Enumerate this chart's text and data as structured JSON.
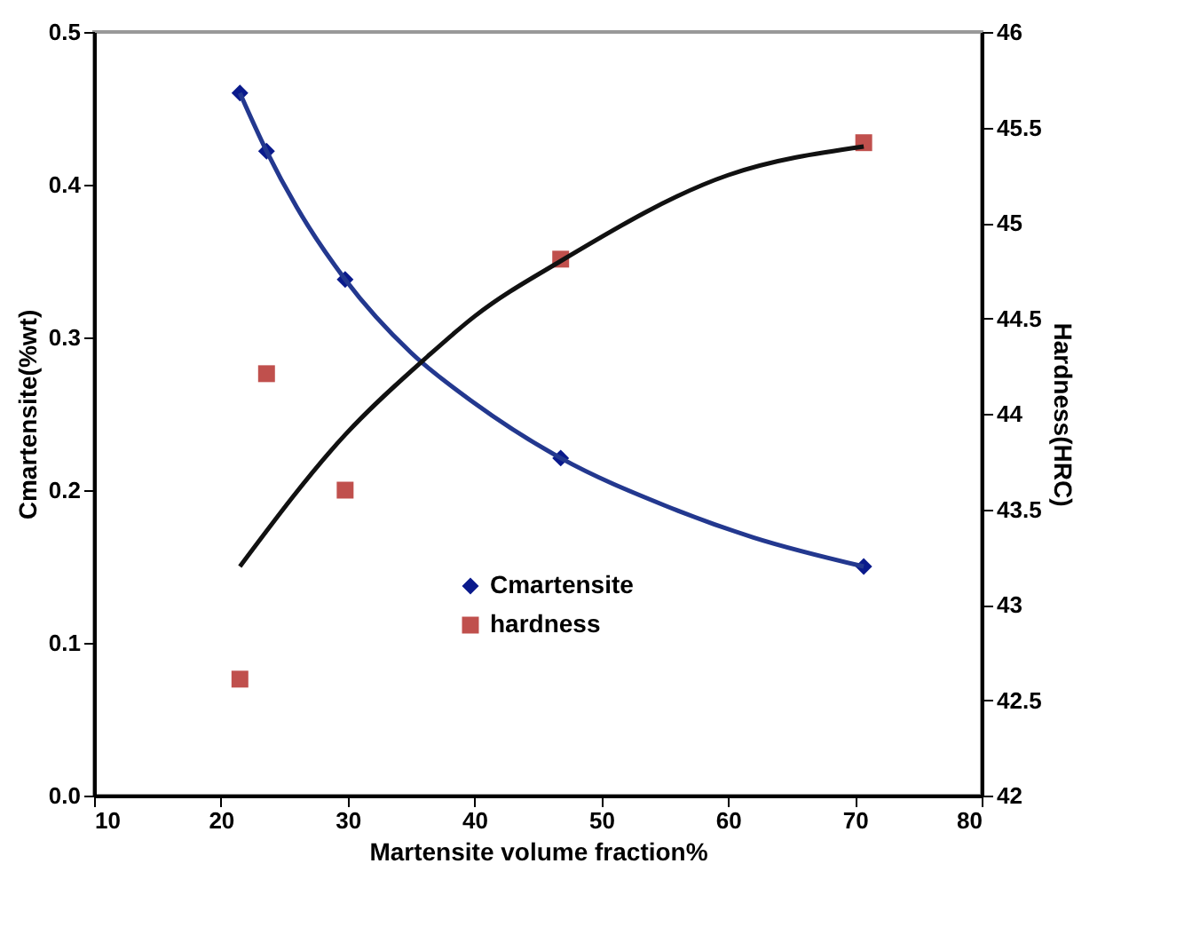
{
  "chart_data": {
    "type": "scatter",
    "xlabel": "Martensite volume fraction%",
    "ylabel": "Cmartensite(%wt)",
    "y2label": "Hardness(HRC)",
    "xlim": [
      10,
      80
    ],
    "xticks": [
      10,
      20,
      30,
      40,
      50,
      60,
      70,
      80
    ],
    "ylim": [
      0,
      0.5
    ],
    "yticks": [
      {
        "value": 0,
        "label": "0.0"
      },
      0.1,
      0.2,
      0.3,
      0.4,
      0.5
    ],
    "y2lim": [
      42,
      46
    ],
    "y2ticks": [
      42,
      42.5,
      43,
      43.5,
      44,
      44.5,
      45,
      45.5,
      46
    ],
    "grid": false,
    "legend": "bottom",
    "series": [
      {
        "name": "Cmartensite",
        "marker": "diamond",
        "color": "#0a1a8c",
        "x": [
          21.5,
          23.6,
          29.8,
          46.8,
          70.7
        ],
        "values": [
          0.46,
          0.422,
          0.338,
          0.221,
          0.15
        ]
      },
      {
        "name": "hardness",
        "marker": "square",
        "axis": "y2",
        "color": "#c0504d",
        "x": [
          21.5,
          23.6,
          29.8,
          46.8,
          70.7
        ],
        "values": [
          42.61,
          44.21,
          43.6,
          44.81,
          45.42
        ]
      },
      {
        "type": "line",
        "color": "#23388f",
        "x": [
          21.5,
          23.6,
          26,
          29.8,
          35,
          40,
          46.8,
          55,
          62,
          70.7
        ],
        "values": [
          0.46,
          0.422,
          0.385,
          0.338,
          0.29,
          0.257,
          0.221,
          0.19,
          0.169,
          0.15
        ]
      },
      {
        "type": "line",
        "axis": "y2",
        "color": "#111111",
        "x": [
          21.5,
          29.8,
          36.3,
          40,
          46.8,
          60,
          70.7
        ],
        "values": [
          43.2,
          43.89,
          44.3,
          44.51,
          44.8,
          45.25,
          45.4
        ]
      }
    ]
  }
}
